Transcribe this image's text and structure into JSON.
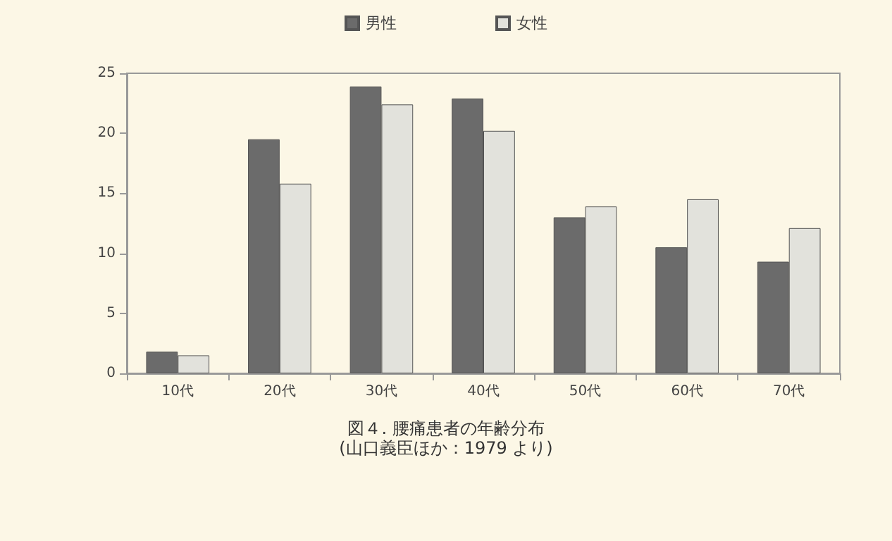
{
  "chart_data": {
    "type": "bar",
    "title": "図４. 腰痛患者の年齢分布",
    "annotations": [
      "(山口義臣ほか：1979 より)"
    ],
    "categories": [
      "10代",
      "20代",
      "30代",
      "40代",
      "50代",
      "60代",
      "70代"
    ],
    "series": [
      {
        "name": "男性",
        "color": "#6b6b6b",
        "values": [
          1.8,
          19.5,
          23.9,
          22.9,
          13.0,
          10.5,
          9.3
        ]
      },
      {
        "name": "女性",
        "color": "#e2e2dc",
        "values": [
          1.5,
          15.8,
          22.4,
          20.2,
          13.9,
          14.5,
          12.1
        ]
      }
    ],
    "ylim": [
      0,
      25
    ],
    "yticks": [
      0,
      5,
      10,
      15,
      20,
      25
    ],
    "grid": false,
    "legend": "top"
  }
}
